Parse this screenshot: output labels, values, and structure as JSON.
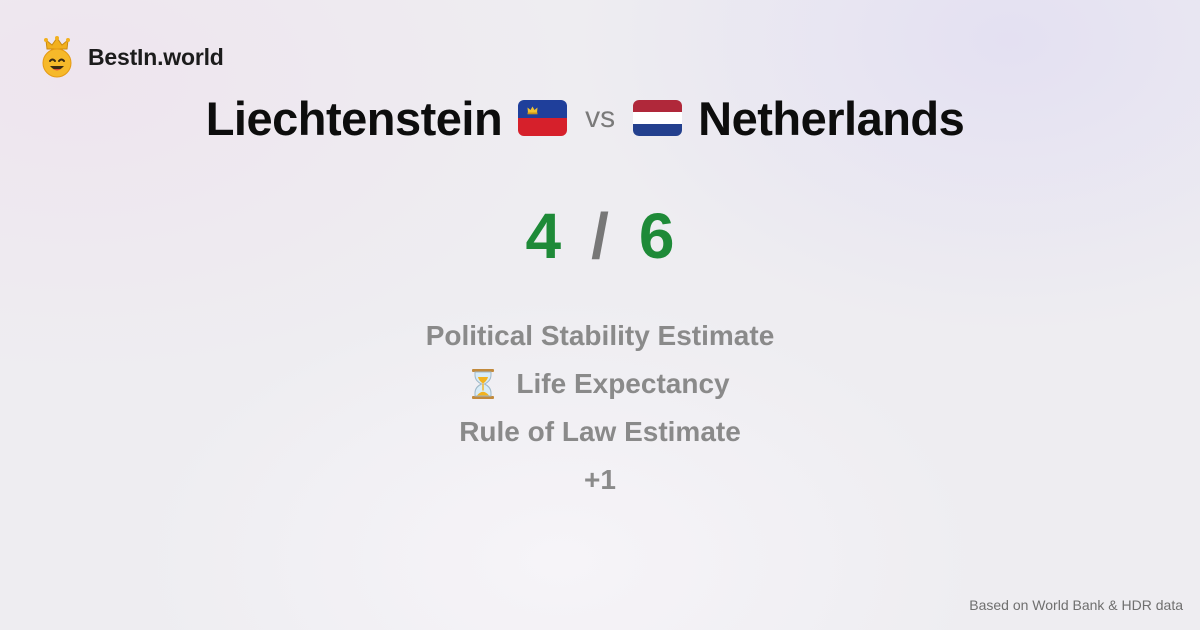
{
  "brand": {
    "name": "BestIn.world",
    "logo_icon": "crowned-smiley-icon"
  },
  "comparison": {
    "left_country": "Liechtenstein",
    "left_flag": "liechtenstein-flag-icon",
    "vs_label": "vs",
    "right_country": "Netherlands",
    "right_flag": "netherlands-flag-icon"
  },
  "score": {
    "left": "4",
    "separator": "/",
    "right": "6",
    "color": "#1e8a38"
  },
  "metrics": [
    {
      "label": "Political Stability Estimate",
      "icon": ""
    },
    {
      "label": "Life Expectancy",
      "icon": "hourglass-icon"
    },
    {
      "label": "Rule of Law Estimate",
      "icon": ""
    },
    {
      "label": "+1",
      "icon": ""
    }
  ],
  "footer": {
    "source": "Based on World Bank & HDR data"
  }
}
